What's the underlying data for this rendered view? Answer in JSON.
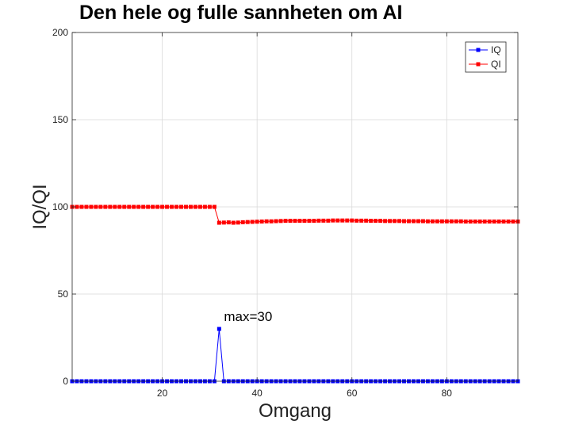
{
  "chart_data": {
    "type": "line",
    "title": "Den hele og fulle sannheten om AI",
    "xlabel": "Omgang",
    "ylabel": "IQ/QI",
    "xlim": [
      1,
      95
    ],
    "ylim": [
      0,
      200
    ],
    "xticks": [
      20,
      40,
      60,
      80
    ],
    "yticks": [
      0,
      50,
      100,
      150,
      200
    ],
    "grid": true,
    "legend_position": "top-right",
    "x": [
      1,
      2,
      3,
      4,
      5,
      6,
      7,
      8,
      9,
      10,
      11,
      12,
      13,
      14,
      15,
      16,
      17,
      18,
      19,
      20,
      21,
      22,
      23,
      24,
      25,
      26,
      27,
      28,
      29,
      30,
      31,
      32,
      33,
      34,
      35,
      36,
      37,
      38,
      39,
      40,
      41,
      42,
      43,
      44,
      45,
      46,
      47,
      48,
      49,
      50,
      51,
      52,
      53,
      54,
      55,
      56,
      57,
      58,
      59,
      60,
      61,
      62,
      63,
      64,
      65,
      66,
      67,
      68,
      69,
      70,
      71,
      72,
      73,
      74,
      75,
      76,
      77,
      78,
      79,
      80,
      81,
      82,
      83,
      84,
      85,
      86,
      87,
      88,
      89,
      90,
      91,
      92,
      93,
      94,
      95
    ],
    "series": [
      {
        "name": "IQ",
        "color": "#0000ff",
        "values": [
          0,
          0,
          0,
          0,
          0,
          0,
          0,
          0,
          0,
          0,
          0,
          0,
          0,
          0,
          0,
          0,
          0,
          0,
          0,
          0,
          0,
          0,
          0,
          0,
          0,
          0,
          0,
          0,
          0,
          0,
          0,
          30,
          0,
          0,
          0,
          0,
          0,
          0,
          0,
          0,
          0,
          0,
          0,
          0,
          0,
          0,
          0,
          0,
          0,
          0,
          0,
          0,
          0,
          0,
          0,
          0,
          0,
          0,
          0,
          0,
          0,
          0,
          0,
          0,
          0,
          0,
          0,
          0,
          0,
          0,
          0,
          0,
          0,
          0,
          0,
          0,
          0,
          0,
          0,
          0,
          0,
          0,
          0,
          0,
          0,
          0,
          0,
          0,
          0,
          0,
          0,
          0,
          0,
          0,
          0
        ]
      },
      {
        "name": "QI",
        "color": "#ff0000",
        "values": [
          100,
          100,
          100,
          100,
          100,
          100,
          100,
          100,
          100,
          100,
          100,
          100,
          100,
          100,
          100,
          100,
          100,
          100,
          100,
          100,
          100,
          100,
          100,
          100,
          100,
          100,
          100,
          100,
          100,
          100,
          100,
          90.9,
          91,
          91.1,
          90.9,
          91,
          91.2,
          91.3,
          91.4,
          91.5,
          91.6,
          91.7,
          91.7,
          91.8,
          91.9,
          92,
          92,
          92,
          92,
          92,
          92,
          92,
          92.1,
          92.1,
          92.1,
          92.2,
          92.2,
          92.2,
          92.2,
          92.2,
          92.1,
          92.1,
          92.1,
          92,
          92,
          92,
          91.9,
          91.9,
          91.9,
          91.9,
          91.8,
          91.8,
          91.8,
          91.8,
          91.8,
          91.7,
          91.7,
          91.7,
          91.7,
          91.7,
          91.7,
          91.7,
          91.7,
          91.6,
          91.6,
          91.6,
          91.6,
          91.6,
          91.6,
          91.6,
          91.6,
          91.6,
          91.6,
          91.6,
          91.6
        ]
      }
    ],
    "annotations": [
      {
        "text": "max=30",
        "x": 32,
        "y": 30
      }
    ]
  }
}
